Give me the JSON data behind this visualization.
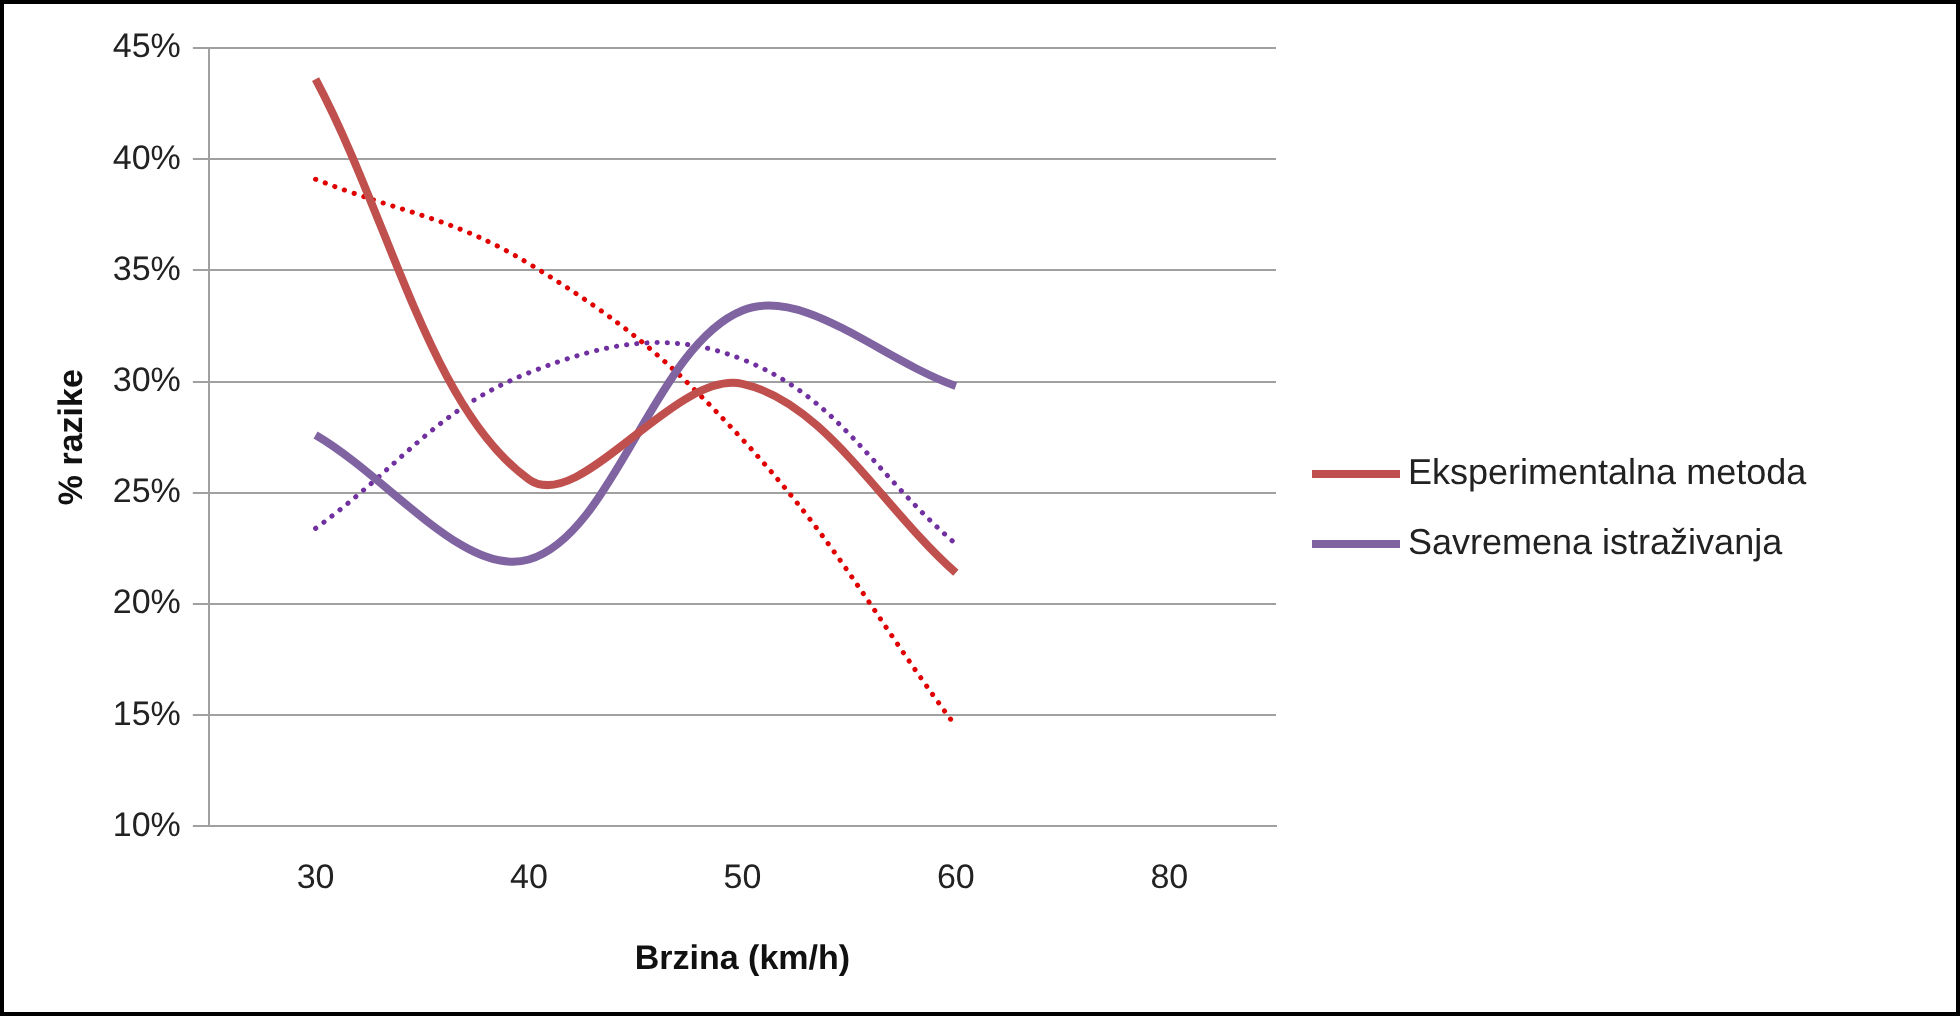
{
  "chart_data": {
    "type": "line",
    "xlabel": "Brzina (km/h)",
    "ylabel": "% razike",
    "categories": [
      "30",
      "40",
      "50",
      "60",
      "80"
    ],
    "series": [
      {
        "name": "Eksperimentalna metoda",
        "color": "#c0504d",
        "values": [
          43.6,
          25.6,
          29.9,
          21.4,
          null
        ]
      },
      {
        "name": "Savremena istraživanja",
        "color": "#8064a2",
        "values": [
          27.6,
          22.0,
          33.2,
          29.8,
          null
        ]
      },
      {
        "type": "line",
        "color": "#e00000",
        "line_style": "dotted",
        "values": [
          39.1,
          35.3,
          27.4,
          14.5,
          null
        ]
      },
      {
        "type": "line",
        "color": "#7030a0",
        "line_style": "dotted",
        "values": [
          23.4,
          30.4,
          31.0,
          22.7,
          null
        ]
      }
    ],
    "ylim": [
      10,
      45
    ],
    "yticks": [
      {
        "value": 10,
        "label": "10%"
      },
      {
        "value": 15,
        "label": "15%"
      },
      {
        "value": 20,
        "label": "20%"
      },
      {
        "value": 25,
        "label": "25%"
      },
      {
        "value": 30,
        "label": "30%"
      },
      {
        "value": 35,
        "label": "35%"
      },
      {
        "value": 40,
        "label": "40%"
      },
      {
        "value": 45,
        "label": "45%"
      }
    ],
    "grid": "y",
    "legend": "right",
    "line_style": "solid",
    "marker": "none"
  }
}
